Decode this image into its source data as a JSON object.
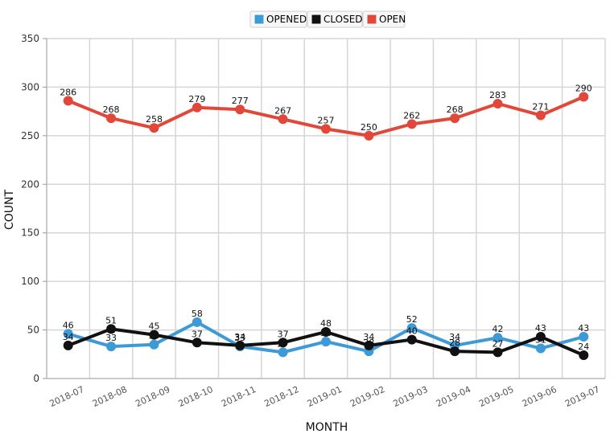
{
  "chart_data": {
    "type": "line",
    "xlabel": "MONTH",
    "ylabel": "COUNT",
    "ylim": [
      0,
      350
    ],
    "yticks": [
      0,
      50,
      100,
      150,
      200,
      250,
      300,
      350
    ],
    "grid": true,
    "legend": "top",
    "categories": [
      "2018-07",
      "2018-08",
      "2018-09",
      "2018-10",
      "2018-11",
      "2018-12",
      "2019-01",
      "2019-02",
      "2019-03",
      "2019-04",
      "2019-05",
      "2019-06",
      "2019-07"
    ],
    "series": [
      {
        "name": "OPENED",
        "color": "#3d9ad6",
        "values": [
          46,
          33,
          35,
          58,
          33,
          27,
          38,
          28,
          52,
          34,
          42,
          31,
          43
        ]
      },
      {
        "name": "CLOSED",
        "color": "#111111",
        "values": [
          34,
          51,
          45,
          37,
          34,
          37,
          48,
          34,
          40,
          28,
          27,
          43,
          24
        ]
      },
      {
        "name": "OPEN",
        "color": "#e2483a",
        "values": [
          286,
          268,
          258,
          279,
          277,
          267,
          257,
          250,
          262,
          268,
          283,
          271,
          290
        ]
      }
    ]
  }
}
